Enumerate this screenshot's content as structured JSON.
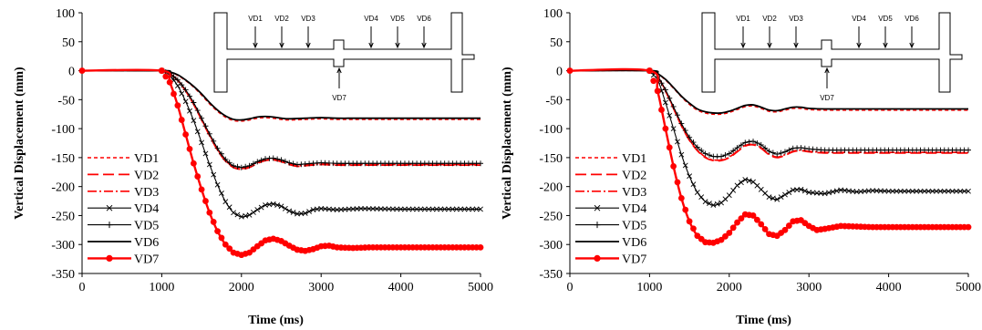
{
  "chart_data": [
    {
      "type": "line",
      "xlabel": "Time (ms)",
      "ylabel": "Vertical Displacement (mm)",
      "xlim": [
        0,
        5000
      ],
      "ylim": [
        -350,
        100
      ],
      "xticks": [
        "0",
        "1000",
        "2000",
        "3000",
        "4000",
        "5000"
      ],
      "yticks": [
        "100",
        "50",
        "0",
        "-50",
        "-100",
        "-150",
        "-200",
        "-250",
        "-300",
        "-350"
      ],
      "grid": false,
      "legend_position": "bottom-left",
      "schematic": {
        "labels": [
          "VD1",
          "VD2",
          "VD3",
          "VD4",
          "VD5",
          "VD6",
          "VD7"
        ]
      },
      "series": [
        {
          "name": "VD1",
          "style": "red-dashed",
          "color": "#ff0000",
          "x": [
            0,
            1000,
            1100,
            1200,
            1300,
            1400,
            1500,
            1600,
            1700,
            1800,
            1900,
            2000,
            2100,
            2200,
            2300,
            2400,
            2500,
            2600,
            2800,
            3000,
            3200,
            3500,
            4000,
            4500,
            5000
          ],
          "y": [
            0,
            0,
            -2,
            -8,
            -17,
            -28,
            -42,
            -57,
            -70,
            -80,
            -86,
            -87,
            -85,
            -82,
            -81,
            -82,
            -84,
            -85,
            -84,
            -83,
            -84,
            -84,
            -84,
            -84,
            -84
          ]
        },
        {
          "name": "VD2",
          "style": "red-longdash",
          "color": "#ff0000",
          "x": [
            0,
            1000,
            1100,
            1200,
            1300,
            1400,
            1500,
            1600,
            1700,
            1800,
            1900,
            2000,
            2100,
            2200,
            2300,
            2400,
            2500,
            2600,
            2700,
            2800,
            3000,
            3200,
            3500,
            4000,
            4500,
            5000
          ],
          "y": [
            0,
            0,
            -5,
            -17,
            -35,
            -58,
            -85,
            -112,
            -137,
            -156,
            -167,
            -170,
            -167,
            -160,
            -155,
            -154,
            -157,
            -162,
            -165,
            -164,
            -162,
            -163,
            -163,
            -163,
            -163,
            -163
          ]
        },
        {
          "name": "VD3",
          "style": "red-dashdot",
          "color": "#ff0000",
          "x": [
            0,
            1000,
            1100,
            1200,
            1300,
            1400,
            1500,
            1600,
            1700,
            1800,
            1900,
            2000,
            2100,
            2200,
            2300,
            2400,
            2500,
            2600,
            2700,
            2800,
            3000,
            3200,
            3500,
            4000,
            4500,
            5000
          ],
          "y": [
            0,
            0,
            -5,
            -16,
            -34,
            -57,
            -84,
            -111,
            -136,
            -155,
            -166,
            -169,
            -166,
            -159,
            -154,
            -153,
            -156,
            -161,
            -164,
            -163,
            -161,
            -162,
            -162,
            -162,
            -162,
            -162
          ]
        },
        {
          "name": "VD4",
          "style": "black-x",
          "color": "#000000",
          "x": [
            0,
            1000,
            1100,
            1200,
            1300,
            1400,
            1500,
            1600,
            1700,
            1800,
            1900,
            2000,
            2100,
            2200,
            2300,
            2400,
            2500,
            2600,
            2700,
            2800,
            2900,
            3000,
            3200,
            3500,
            4000,
            4500,
            5000
          ],
          "y": [
            0,
            0,
            -8,
            -26,
            -53,
            -86,
            -124,
            -162,
            -197,
            -226,
            -245,
            -252,
            -249,
            -240,
            -232,
            -230,
            -234,
            -242,
            -247,
            -246,
            -240,
            -238,
            -240,
            -238,
            -239,
            -239,
            -239
          ]
        },
        {
          "name": "VD5",
          "style": "black-plus",
          "color": "#000000",
          "x": [
            0,
            1000,
            1100,
            1200,
            1300,
            1400,
            1500,
            1600,
            1700,
            1800,
            1900,
            2000,
            2100,
            2200,
            2300,
            2400,
            2500,
            2600,
            2700,
            2800,
            3000,
            3200,
            3500,
            4000,
            4500,
            5000
          ],
          "y": [
            0,
            0,
            -5,
            -16,
            -33,
            -55,
            -82,
            -109,
            -134,
            -153,
            -164,
            -167,
            -164,
            -157,
            -152,
            -151,
            -154,
            -159,
            -162,
            -161,
            -159,
            -160,
            -160,
            -160,
            -160,
            -160
          ]
        },
        {
          "name": "VD6",
          "style": "black-solid",
          "color": "#000000",
          "x": [
            0,
            1000,
            1100,
            1200,
            1300,
            1400,
            1500,
            1600,
            1700,
            1800,
            1900,
            2000,
            2100,
            2200,
            2300,
            2400,
            2500,
            2600,
            2800,
            3000,
            3200,
            3500,
            4000,
            4500,
            5000
          ],
          "y": [
            0,
            0,
            -2,
            -7,
            -16,
            -27,
            -40,
            -55,
            -68,
            -78,
            -84,
            -85,
            -83,
            -80,
            -79,
            -80,
            -82,
            -83,
            -82,
            -81,
            -82,
            -82,
            -82,
            -82,
            -82
          ]
        },
        {
          "name": "VD7",
          "style": "red-dot",
          "color": "#ff0000",
          "x": [
            0,
            1000,
            1100,
            1200,
            1300,
            1400,
            1500,
            1600,
            1700,
            1800,
            1900,
            2000,
            2100,
            2200,
            2300,
            2400,
            2500,
            2600,
            2700,
            2800,
            2900,
            3000,
            3100,
            3200,
            3400,
            3600,
            3800,
            4000,
            4500,
            5000
          ],
          "y": [
            0,
            0,
            -20,
            -60,
            -110,
            -160,
            -205,
            -245,
            -277,
            -300,
            -314,
            -318,
            -314,
            -303,
            -293,
            -290,
            -294,
            -302,
            -309,
            -311,
            -308,
            -303,
            -302,
            -305,
            -306,
            -305,
            -305,
            -305,
            -305,
            -305
          ]
        }
      ]
    },
    {
      "type": "line",
      "xlabel": "Time (ms)",
      "ylabel": "Vertical Displacement (mm)",
      "xlim": [
        0,
        5000
      ],
      "ylim": [
        -350,
        100
      ],
      "xticks": [
        "0",
        "1000",
        "2000",
        "3000",
        "4000",
        "5000"
      ],
      "yticks": [
        "100",
        "50",
        "0",
        "-50",
        "-100",
        "-150",
        "-200",
        "-250",
        "-300",
        "-350"
      ],
      "grid": false,
      "legend_position": "bottom-left",
      "schematic": {
        "labels": [
          "VD1",
          "VD2",
          "VD3",
          "VD4",
          "VD5",
          "VD6",
          "VD7"
        ]
      },
      "series": [
        {
          "name": "VD1",
          "style": "red-dashed",
          "color": "#ff0000",
          "x": [
            0,
            1000,
            1100,
            1200,
            1300,
            1400,
            1500,
            1600,
            1700,
            1800,
            1900,
            2000,
            2100,
            2200,
            2300,
            2400,
            2500,
            2600,
            2700,
            2800,
            2900,
            3000,
            3200,
            3500,
            4000,
            4500,
            5000
          ],
          "y": [
            0,
            0,
            -5,
            -16,
            -30,
            -45,
            -58,
            -68,
            -73,
            -75,
            -75,
            -72,
            -67,
            -62,
            -61,
            -65,
            -70,
            -71,
            -68,
            -65,
            -65,
            -67,
            -68,
            -68,
            -68,
            -68,
            -68
          ]
        },
        {
          "name": "VD2",
          "style": "red-longdash",
          "color": "#ff0000",
          "x": [
            0,
            1000,
            1100,
            1200,
            1300,
            1400,
            1500,
            1600,
            1700,
            1800,
            1900,
            2000,
            2100,
            2200,
            2300,
            2400,
            2500,
            2600,
            2700,
            2800,
            2900,
            3000,
            3200,
            3500,
            4000,
            4500,
            5000
          ],
          "y": [
            0,
            0,
            -10,
            -35,
            -65,
            -95,
            -120,
            -138,
            -150,
            -155,
            -155,
            -150,
            -140,
            -130,
            -128,
            -134,
            -145,
            -150,
            -146,
            -140,
            -138,
            -140,
            -142,
            -142,
            -142,
            -142,
            -142
          ]
        },
        {
          "name": "VD3",
          "style": "red-dashdot",
          "color": "#ff0000",
          "x": [
            0,
            1000,
            1100,
            1200,
            1300,
            1400,
            1500,
            1600,
            1700,
            1800,
            1900,
            2000,
            2100,
            2200,
            2300,
            2400,
            2500,
            2600,
            2700,
            2800,
            2900,
            3000,
            3200,
            3500,
            4000,
            4500,
            5000
          ],
          "y": [
            0,
            0,
            -10,
            -34,
            -64,
            -94,
            -119,
            -137,
            -149,
            -154,
            -154,
            -149,
            -139,
            -129,
            -127,
            -133,
            -144,
            -149,
            -145,
            -139,
            -137,
            -139,
            -141,
            -141,
            -141,
            -141,
            -141
          ]
        },
        {
          "name": "VD4",
          "style": "black-x",
          "color": "#000000",
          "x": [
            0,
            1000,
            1100,
            1200,
            1300,
            1400,
            1500,
            1600,
            1700,
            1800,
            1900,
            2000,
            2100,
            2200,
            2300,
            2400,
            2500,
            2600,
            2700,
            2800,
            2900,
            3000,
            3200,
            3400,
            3600,
            3800,
            4000,
            4500,
            5000
          ],
          "y": [
            0,
            0,
            -15,
            -55,
            -100,
            -145,
            -182,
            -210,
            -226,
            -232,
            -228,
            -215,
            -198,
            -188,
            -192,
            -205,
            -218,
            -222,
            -214,
            -206,
            -205,
            -210,
            -212,
            -206,
            -209,
            -207,
            -208,
            -208,
            -208
          ]
        },
        {
          "name": "VD5",
          "style": "black-plus",
          "color": "#000000",
          "x": [
            0,
            1000,
            1100,
            1200,
            1300,
            1400,
            1500,
            1600,
            1700,
            1800,
            1900,
            2000,
            2100,
            2200,
            2300,
            2400,
            2500,
            2600,
            2700,
            2800,
            2900,
            3000,
            3200,
            3500,
            4000,
            4500,
            5000
          ],
          "y": [
            0,
            0,
            -10,
            -33,
            -62,
            -91,
            -115,
            -132,
            -143,
            -148,
            -148,
            -143,
            -133,
            -124,
            -122,
            -128,
            -139,
            -144,
            -140,
            -134,
            -133,
            -135,
            -137,
            -137,
            -137,
            -137,
            -137
          ]
        },
        {
          "name": "VD6",
          "style": "black-solid",
          "color": "#000000",
          "x": [
            0,
            1000,
            1100,
            1200,
            1300,
            1400,
            1500,
            1600,
            1700,
            1800,
            1900,
            2000,
            2100,
            2200,
            2300,
            2400,
            2500,
            2600,
            2700,
            2800,
            2900,
            3000,
            3200,
            3500,
            4000,
            4500,
            5000
          ],
          "y": [
            0,
            0,
            -5,
            -15,
            -29,
            -44,
            -56,
            -66,
            -71,
            -73,
            -73,
            -70,
            -65,
            -60,
            -59,
            -63,
            -68,
            -69,
            -66,
            -63,
            -63,
            -65,
            -66,
            -66,
            -66,
            -66,
            -66
          ]
        },
        {
          "name": "VD7",
          "style": "red-dot",
          "color": "#ff0000",
          "x": [
            0,
            1000,
            1100,
            1200,
            1300,
            1400,
            1500,
            1600,
            1700,
            1800,
            1900,
            2000,
            2100,
            2200,
            2300,
            2400,
            2500,
            2600,
            2700,
            2800,
            2900,
            3000,
            3100,
            3200,
            3400,
            3600,
            3800,
            4000,
            4500,
            5000
          ],
          "y": [
            0,
            0,
            -35,
            -100,
            -165,
            -220,
            -260,
            -285,
            -296,
            -297,
            -292,
            -280,
            -262,
            -248,
            -250,
            -265,
            -282,
            -285,
            -275,
            -260,
            -258,
            -268,
            -275,
            -273,
            -268,
            -269,
            -270,
            -270,
            -270,
            -270
          ]
        }
      ]
    }
  ]
}
